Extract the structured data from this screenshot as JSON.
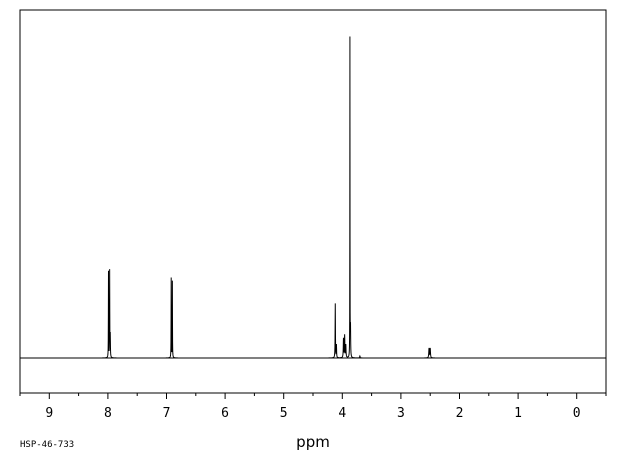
{
  "chart_data": {
    "type": "line",
    "title": "",
    "xlabel": "ppm",
    "ylabel": "",
    "xlim": [
      9.5,
      -0.5
    ],
    "ylim": [
      -0.1,
      1.0
    ],
    "x_reversed": true,
    "grid": false,
    "x_ticks": [
      9,
      8,
      7,
      6,
      5,
      4,
      3,
      2,
      1,
      0
    ],
    "x_tick_labels": [
      "9",
      "8",
      "7",
      "6",
      "5",
      "4",
      "3",
      "2",
      "1",
      "0"
    ],
    "caption": "HSP-46-733",
    "peaks": [
      {
        "ppm": 7.99,
        "height": 0.27,
        "width": 0.004
      },
      {
        "ppm": 7.97,
        "height": 0.27,
        "width": 0.004
      },
      {
        "ppm": 7.96,
        "height": 0.07,
        "width": 0.006
      },
      {
        "ppm": 6.92,
        "height": 0.25,
        "width": 0.004
      },
      {
        "ppm": 6.9,
        "height": 0.24,
        "width": 0.004
      },
      {
        "ppm": 4.12,
        "height": 0.17,
        "width": 0.006
      },
      {
        "ppm": 4.1,
        "height": 0.04,
        "width": 0.006
      },
      {
        "ppm": 3.98,
        "height": 0.06,
        "width": 0.008
      },
      {
        "ppm": 3.96,
        "height": 0.07,
        "width": 0.008
      },
      {
        "ppm": 3.94,
        "height": 0.04,
        "width": 0.008
      },
      {
        "ppm": 3.87,
        "height": 1.0,
        "width": 0.003
      },
      {
        "ppm": 3.86,
        "height": 0.09,
        "width": 0.006
      },
      {
        "ppm": 3.7,
        "height": 0.006,
        "width": 0.01
      },
      {
        "ppm": 2.52,
        "height": 0.03,
        "width": 0.01
      },
      {
        "ppm": 2.5,
        "height": 0.03,
        "width": 0.01
      }
    ]
  }
}
